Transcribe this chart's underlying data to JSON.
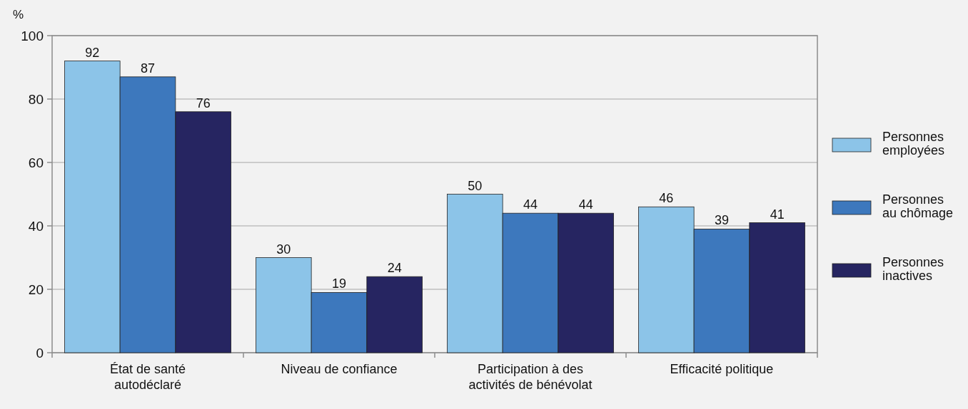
{
  "chart_data": {
    "type": "bar",
    "ylabel": "%",
    "categories": [
      "État de santé autodéclaré",
      "Niveau de confiance",
      "Participation à des activités de bénévolat",
      "Efficacité politique"
    ],
    "series": [
      {
        "name": "Personnes employées",
        "color": "#8cc4e8",
        "values": [
          92,
          30,
          50,
          46
        ]
      },
      {
        "name": "Personnes au chômage",
        "color": "#3d78bd",
        "values": [
          87,
          19,
          44,
          39
        ]
      },
      {
        "name": "Personnes inactives",
        "color": "#262561",
        "values": [
          76,
          24,
          44,
          41
        ]
      }
    ],
    "ylim": [
      0,
      100
    ],
    "yticks": [
      0,
      20,
      40,
      60,
      80,
      100
    ],
    "grid": "y",
    "legend": "right",
    "data_labels": true
  }
}
